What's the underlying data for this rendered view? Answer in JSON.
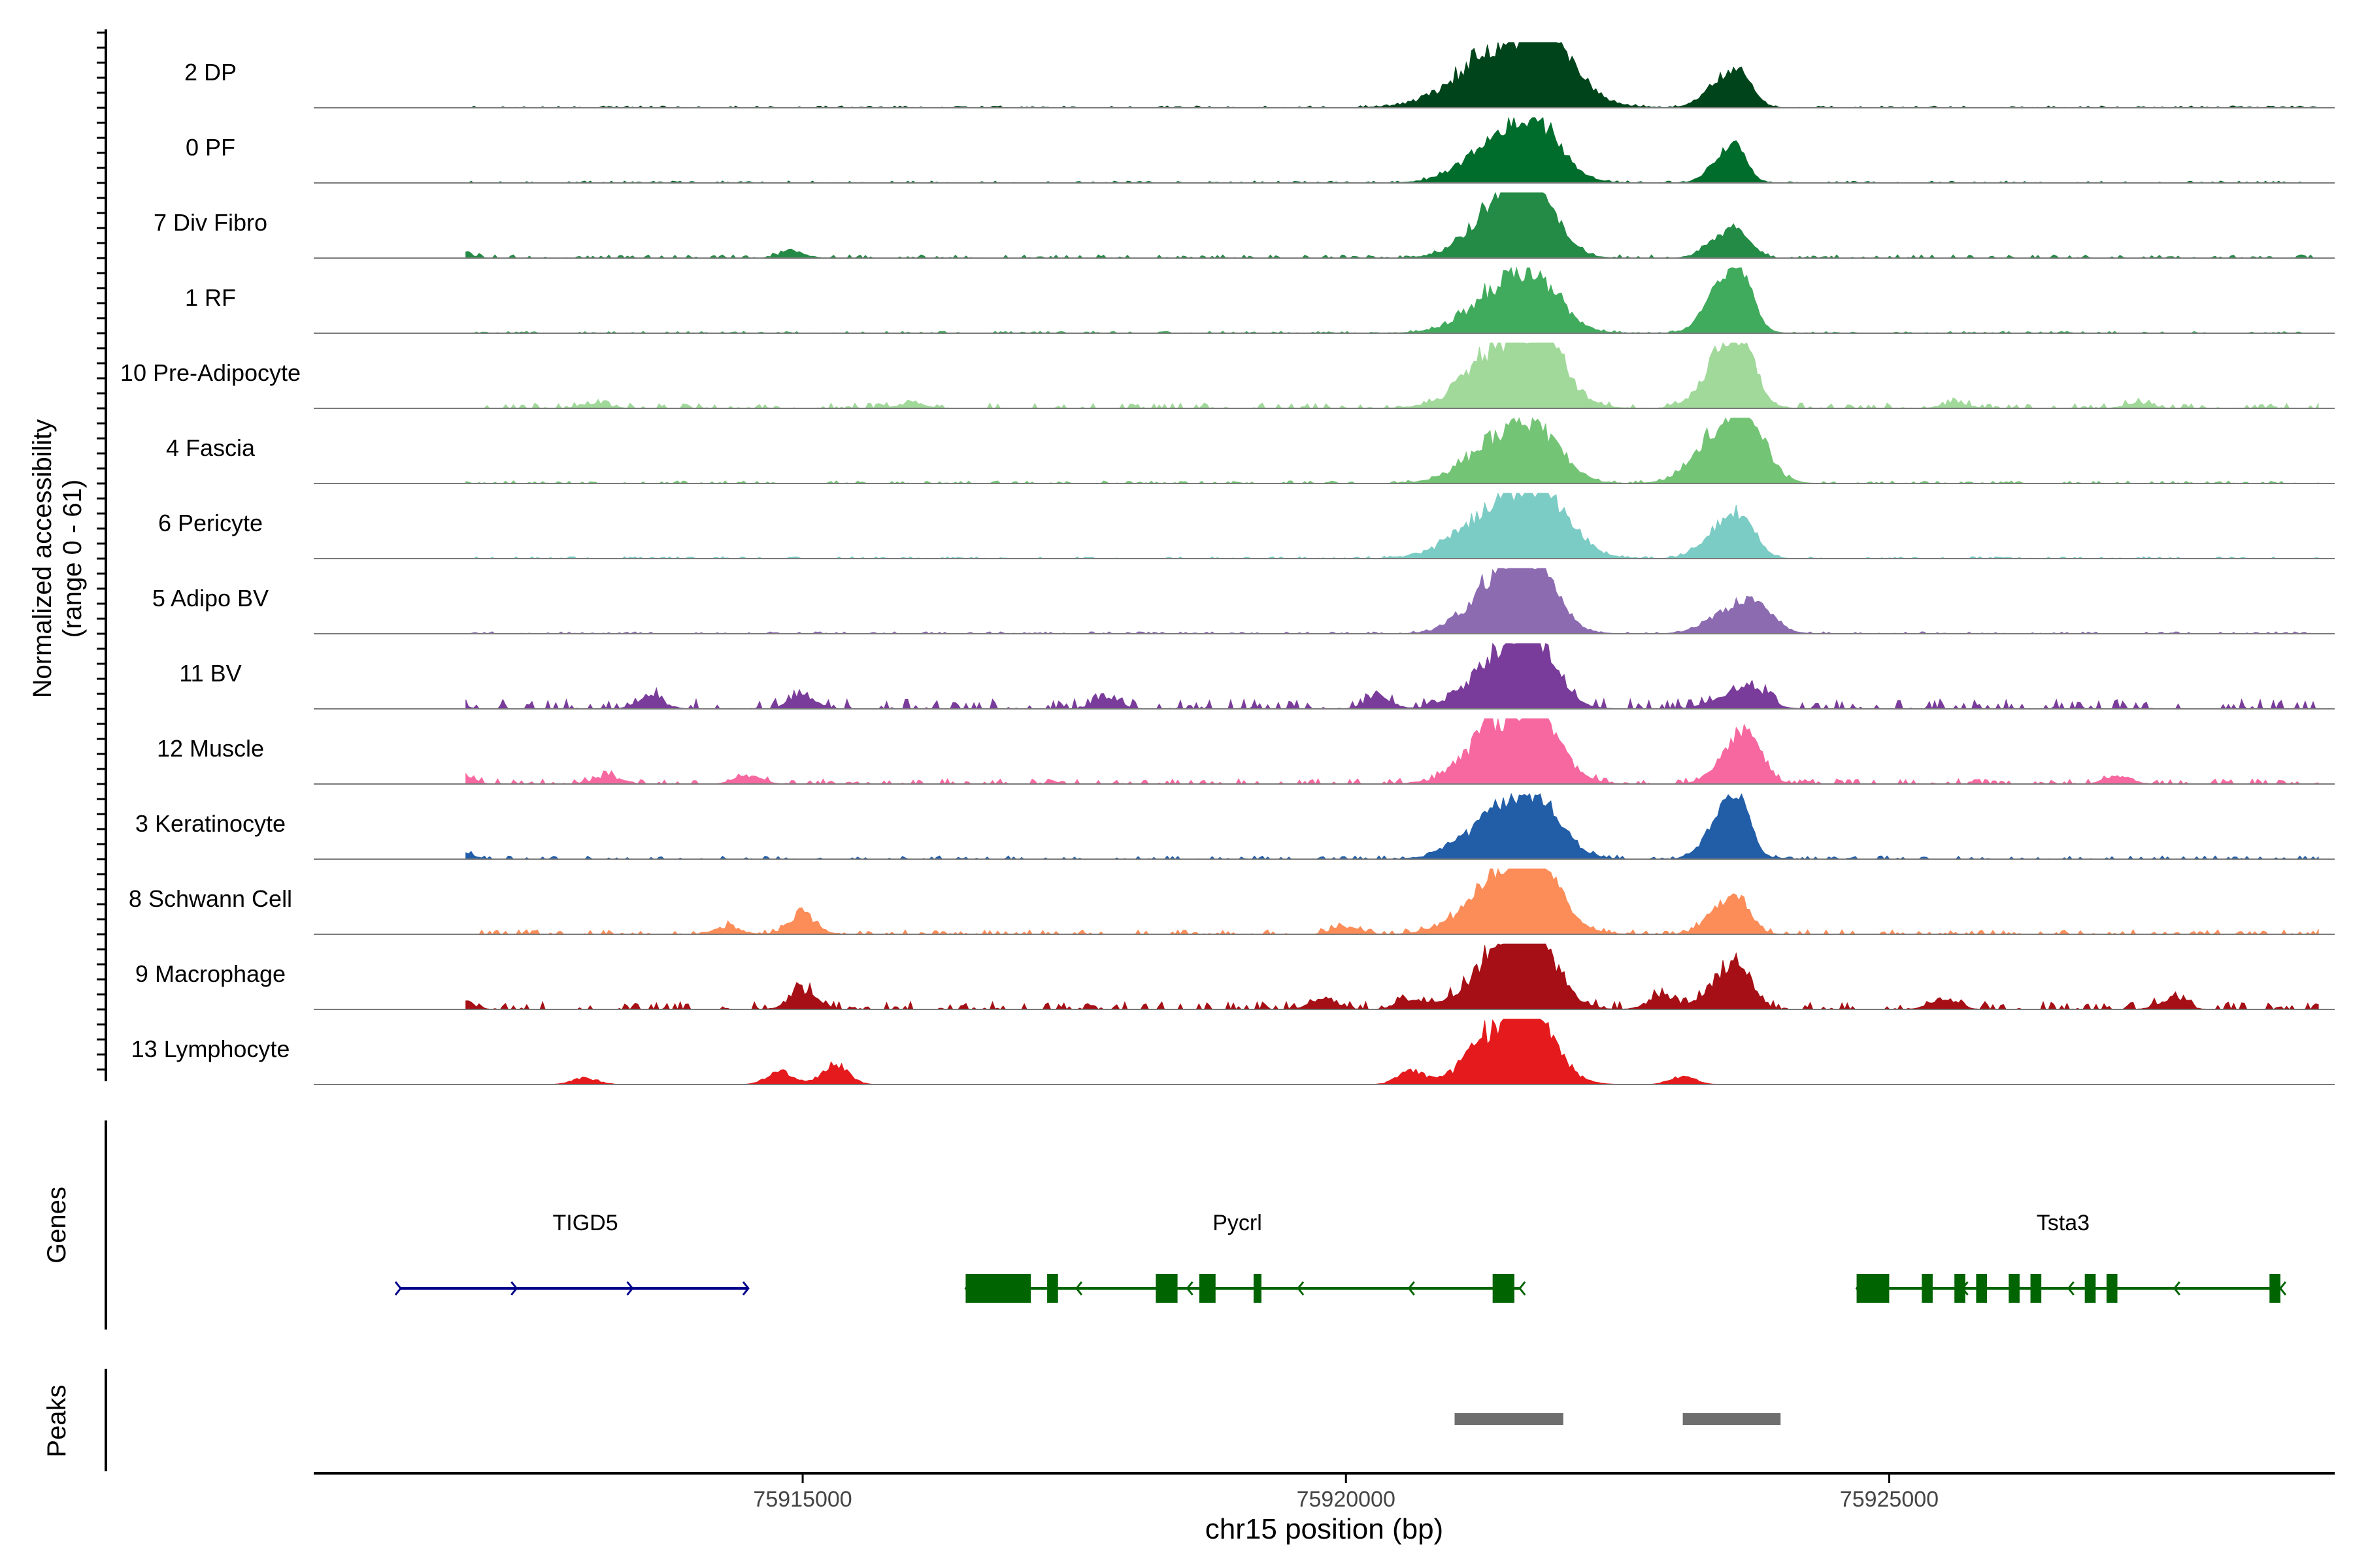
{
  "chart_data": {
    "type": "area",
    "title": "",
    "coverage": {
      "ylabel_line1": "Normalized accessibility",
      "ylabel_line2": "(range 0 - 61)",
      "ylim": [
        0,
        61
      ],
      "x_range": [
        75910500,
        75929100
      ],
      "tracks": [
        {
          "name": "2 DP",
          "color": "#00441b",
          "noise": 0.03,
          "bg": [],
          "peaks": [
            [
              75921500,
              420,
              0.95,
              0.55
            ],
            [
              75923500,
              170,
              0.45,
              0.3
            ]
          ]
        },
        {
          "name": "0 PF",
          "color": "#006d2c",
          "noise": 0.03,
          "bg": [],
          "peaks": [
            [
              75921500,
              330,
              0.8,
              0.5
            ],
            [
              75923500,
              140,
              0.45,
              0.3
            ]
          ]
        },
        {
          "name": "7 Div Fibro",
          "color": "#238b45",
          "noise": 0.05,
          "bg": [
            [
              75911800,
              0.15
            ],
            [
              75914900,
              0.12
            ]
          ],
          "peaks": [
            [
              75921500,
              300,
              1.0,
              0.45
            ],
            [
              75923500,
              160,
              0.35,
              0.3
            ]
          ]
        },
        {
          "name": "1 RF",
          "color": "#41ab5d",
          "noise": 0.03,
          "bg": [],
          "peaks": [
            [
              75921500,
              330,
              0.75,
              0.55
            ],
            [
              75923500,
              170,
              0.8,
              0.3
            ]
          ]
        },
        {
          "name": "10 Pre-Adipocyte",
          "color": "#a1d99b",
          "noise": 0.08,
          "bg": [
            [
              75911500,
              0.12
            ],
            [
              75913100,
              0.1
            ],
            [
              75916000,
              0.1
            ],
            [
              75925600,
              0.1
            ],
            [
              75927300,
              0.1
            ]
          ],
          "peaks": [
            [
              75921500,
              340,
              1.0,
              0.6
            ],
            [
              75923500,
              190,
              0.9,
              0.4
            ]
          ]
        },
        {
          "name": "4 Fascia",
          "color": "#74c476",
          "noise": 0.04,
          "bg": [],
          "peaks": [
            [
              75921500,
              330,
              0.75,
              0.5
            ],
            [
              75923500,
              250,
              0.9,
              0.5
            ]
          ]
        },
        {
          "name": "6 Pericyte",
          "color": "#7bccc4",
          "noise": 0.03,
          "bg": [],
          "peaks": [
            [
              75921500,
              380,
              0.9,
              0.5
            ],
            [
              75923500,
              190,
              0.55,
              0.35
            ]
          ]
        },
        {
          "name": "5 Adipo BV",
          "color": "#8c6bb1",
          "noise": 0.03,
          "bg": [],
          "peaks": [
            [
              75921500,
              300,
              1.0,
              0.45
            ],
            [
              75923600,
              230,
              0.4,
              0.35
            ]
          ]
        },
        {
          "name": "11 BV",
          "color": "#7a3c9a",
          "noise": 0.15,
          "bg": [
            [
              75911700,
              0.2
            ],
            [
              75913600,
              0.22
            ],
            [
              75915000,
              0.25
            ],
            [
              75917800,
              0.2
            ],
            [
              75920300,
              0.2
            ]
          ],
          "peaks": [
            [
              75921500,
              300,
              0.9,
              0.4
            ],
            [
              75923600,
              200,
              0.25,
              0.3
            ]
          ]
        },
        {
          "name": "12 Muscle",
          "color": "#f768a1",
          "noise": 0.08,
          "bg": [
            [
              75911800,
              0.25
            ],
            [
              75913200,
              0.15
            ],
            [
              75914500,
              0.15
            ],
            [
              75927100,
              0.15
            ]
          ],
          "peaks": [
            [
              75921500,
              320,
              1.0,
              0.6
            ],
            [
              75923600,
              170,
              0.6,
              0.35
            ]
          ]
        },
        {
          "name": "3 Keratinocyte",
          "color": "#225ea8",
          "noise": 0.05,
          "bg": [
            [
              75911800,
              0.18
            ]
          ],
          "peaks": [
            [
              75921500,
              330,
              0.8,
              0.45
            ],
            [
              75923500,
              160,
              0.75,
              0.3
            ]
          ]
        },
        {
          "name": "8 Schwann Cell",
          "color": "#fc8d59",
          "noise": 0.07,
          "bg": [
            [
              75915000,
              0.4
            ],
            [
              75914300,
              0.15
            ],
            [
              75920000,
              0.15
            ]
          ],
          "peaks": [
            [
              75921500,
              330,
              0.95,
              0.4
            ],
            [
              75923500,
              160,
              0.45,
              0.35
            ]
          ]
        },
        {
          "name": "9 Macrophage",
          "color": "#a50f15",
          "noise": 0.12,
          "bg": [
            [
              75911800,
              0.25
            ],
            [
              75915000,
              0.38
            ],
            [
              75919800,
              0.2
            ],
            [
              75920600,
              0.2
            ],
            [
              75922900,
              0.25
            ],
            [
              75925500,
              0.2
            ],
            [
              75927600,
              0.2
            ]
          ],
          "peaks": [
            [
              75921500,
              300,
              1.0,
              0.5
            ],
            [
              75923500,
              170,
              0.55,
              0.4
            ]
          ]
        },
        {
          "name": "13 Lymphocyte",
          "color": "#e41a1c",
          "noise": 0.0,
          "bg": [
            [
              75913000,
              0.12
            ],
            [
              75914800,
              0.25
            ],
            [
              75915300,
              0.38
            ],
            [
              75920600,
              0.25
            ],
            [
              75923100,
              0.15
            ]
          ],
          "peaks": [
            [
              75921500,
              300,
              1.0,
              0.6
            ]
          ]
        }
      ]
    },
    "genes": {
      "label": "Genes",
      "items": [
        {
          "name": "TIGD5",
          "color": "#00008b",
          "strand": "+",
          "start": 75911300,
          "end": 75914500,
          "exons": [],
          "label_x": 75913000
        },
        {
          "name": "Pycrl",
          "color": "#006400",
          "strand": "-",
          "start": 75916500,
          "end": 75921600,
          "exons": [
            [
              75916500,
              75917100
            ],
            [
              75917250,
              75917350
            ],
            [
              75918250,
              75918450
            ],
            [
              75918650,
              75918800
            ],
            [
              75919150,
              75919200
            ],
            [
              75921350,
              75921550
            ]
          ],
          "label_x": 75919000
        },
        {
          "name": "Tsta3",
          "color": "#006400",
          "strand": "-",
          "start": 75924700,
          "end": 75928600,
          "exons": [
            [
              75924700,
              75925000
            ],
            [
              75925300,
              75925400
            ],
            [
              75925600,
              75925700
            ],
            [
              75925800,
              75925900
            ],
            [
              75926100,
              75926200
            ],
            [
              75926300,
              75926400
            ],
            [
              75926800,
              75926900
            ],
            [
              75927000,
              75927100
            ],
            [
              75928500,
              75928600
            ]
          ],
          "label_x": 75926600
        }
      ]
    },
    "peaks": {
      "label": "Peaks",
      "color": "#6e6e6e",
      "regions": [
        [
          75921000,
          75922000
        ],
        [
          75923100,
          75924000
        ]
      ]
    },
    "xaxis": {
      "label": "chr15 position (bp)",
      "ticks": [
        75915000,
        75920000,
        75925000
      ],
      "tick_labels": [
        "75915000",
        "75920000",
        "75925000"
      ]
    }
  }
}
